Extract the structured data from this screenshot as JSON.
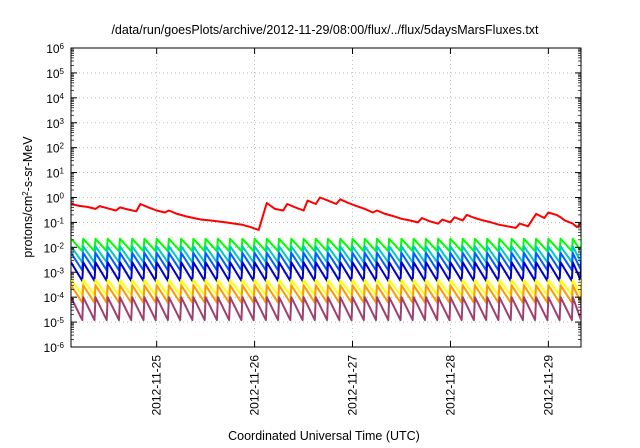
{
  "chart_data": {
    "type": "line",
    "title": "/data/run/goesPlots/archive/2012-11-29/08:00/flux/../flux/5daysMarsFluxes.txt",
    "xlabel": "Coordinated Universal Time (UTC)",
    "ylabel": {
      "base": "protons/cm",
      "exp": "2",
      "rest": "-s-sr-MeV"
    },
    "yscale": "log",
    "ylim_exponents": [
      -6,
      6
    ],
    "y_ticks": [
      {
        "base": "10",
        "exp": "-6"
      },
      {
        "base": "10",
        "exp": "-5"
      },
      {
        "base": "10",
        "exp": "-4"
      },
      {
        "base": "10",
        "exp": "-3"
      },
      {
        "base": "10",
        "exp": "-2"
      },
      {
        "base": "10",
        "exp": "-1"
      },
      {
        "base": "10",
        "exp": "0"
      },
      {
        "base": "10",
        "exp": "1"
      },
      {
        "base": "10",
        "exp": "2"
      },
      {
        "base": "10",
        "exp": "3"
      },
      {
        "base": "10",
        "exp": "4"
      },
      {
        "base": "10",
        "exp": "5"
      },
      {
        "base": "10",
        "exp": "6"
      }
    ],
    "xlim_days": [
      "2012-11-24 03:00",
      "2012-11-29 08:00"
    ],
    "x_ticks": [
      "2012-11-25",
      "2012-11-26",
      "2012-11-27",
      "2012-11-28",
      "2012-11-29"
    ],
    "grid": true,
    "series": [
      {
        "color": "#ff0000",
        "values": [
          [
            "2012-11-24 03:00",
            0.55
          ],
          [
            "2012-11-24 05:00",
            0.46
          ],
          [
            "2012-11-24 07:00",
            0.42
          ],
          [
            "2012-11-24 09:00",
            0.35
          ],
          [
            "2012-11-24 10:00",
            0.45
          ],
          [
            "2012-11-24 12:00",
            0.37
          ],
          [
            "2012-11-24 14:00",
            0.3
          ],
          [
            "2012-11-24 15:00",
            0.4
          ],
          [
            "2012-11-24 17:00",
            0.33
          ],
          [
            "2012-11-24 19:00",
            0.28
          ],
          [
            "2012-11-24 20:00",
            0.55
          ],
          [
            "2012-11-24 22:00",
            0.4
          ],
          [
            "2012-11-25 00:00",
            0.3
          ],
          [
            "2012-11-25 02:00",
            0.25
          ],
          [
            "2012-11-25 03:00",
            0.3
          ],
          [
            "2012-11-25 05:00",
            0.22
          ],
          [
            "2012-11-25 07:00",
            0.18
          ],
          [
            "2012-11-25 09:00",
            0.15
          ],
          [
            "2012-11-25 11:00",
            0.13
          ],
          [
            "2012-11-25 13:00",
            0.12
          ],
          [
            "2012-11-25 15:00",
            0.11
          ],
          [
            "2012-11-25 17:00",
            0.1
          ],
          [
            "2012-11-25 19:00",
            0.09
          ],
          [
            "2012-11-25 21:00",
            0.08
          ],
          [
            "2012-11-25 23:00",
            0.065
          ],
          [
            "2012-11-26 01:00",
            0.05
          ],
          [
            "2012-11-26 03:00",
            0.6
          ],
          [
            "2012-11-26 05:00",
            0.35
          ],
          [
            "2012-11-26 07:00",
            0.3
          ],
          [
            "2012-11-26 08:00",
            0.55
          ],
          [
            "2012-11-26 10:00",
            0.4
          ],
          [
            "2012-11-26 12:00",
            0.3
          ],
          [
            "2012-11-26 13:00",
            0.75
          ],
          [
            "2012-11-26 15:00",
            0.55
          ],
          [
            "2012-11-26 16:00",
            1.0
          ],
          [
            "2012-11-26 18:00",
            0.75
          ],
          [
            "2012-11-26 20:00",
            0.55
          ],
          [
            "2012-11-26 21:00",
            0.85
          ],
          [
            "2012-11-26 23:00",
            0.6
          ],
          [
            "2012-11-27 01:00",
            0.45
          ],
          [
            "2012-11-27 03:00",
            0.35
          ],
          [
            "2012-11-27 05:00",
            0.25
          ],
          [
            "2012-11-27 06:00",
            0.3
          ],
          [
            "2012-11-27 08:00",
            0.22
          ],
          [
            "2012-11-27 10:00",
            0.18
          ],
          [
            "2012-11-27 12:00",
            0.14
          ],
          [
            "2012-11-27 14:00",
            0.12
          ],
          [
            "2012-11-27 16:00",
            0.1
          ],
          [
            "2012-11-27 17:00",
            0.15
          ],
          [
            "2012-11-27 19:00",
            0.11
          ],
          [
            "2012-11-27 21:00",
            0.09
          ],
          [
            "2012-11-27 22:00",
            0.13
          ],
          [
            "2012-11-28 00:00",
            0.1
          ],
          [
            "2012-11-28 01:00",
            0.16
          ],
          [
            "2012-11-28 03:00",
            0.12
          ],
          [
            "2012-11-28 04:00",
            0.2
          ],
          [
            "2012-11-28 06:00",
            0.15
          ],
          [
            "2012-11-28 08:00",
            0.12
          ],
          [
            "2012-11-28 10:00",
            0.1
          ],
          [
            "2012-11-28 12:00",
            0.08
          ],
          [
            "2012-11-28 14:00",
            0.07
          ],
          [
            "2012-11-28 16:00",
            0.06
          ],
          [
            "2012-11-28 17:00",
            0.09
          ],
          [
            "2012-11-28 19:00",
            0.07
          ],
          [
            "2012-11-28 21:00",
            0.22
          ],
          [
            "2012-11-28 23:00",
            0.15
          ],
          [
            "2012-11-29 00:00",
            0.25
          ],
          [
            "2012-11-29 02:00",
            0.2
          ],
          [
            "2012-11-29 03:00",
            0.16
          ],
          [
            "2012-11-29 04:00",
            0.12
          ],
          [
            "2012-11-29 06:00",
            0.09
          ],
          [
            "2012-11-29 07:00",
            0.065
          ],
          [
            "2012-11-29 08:00",
            0.09
          ]
        ]
      },
      {
        "color": "#00ff00",
        "pattern": "sawtooth",
        "high": 0.022,
        "low": 0.007,
        "period_hours": 3.0
      },
      {
        "color": "#00c8c8",
        "pattern": "sawtooth",
        "high": 0.011,
        "low": 0.0025,
        "period_hours": 3.0
      },
      {
        "color": "#0060ff",
        "pattern": "sawtooth",
        "high": 0.006,
        "low": 0.0012,
        "period_hours": 3.0
      },
      {
        "color": "#0000cc",
        "pattern": "sawtooth",
        "high": 0.0025,
        "low": 0.00045,
        "period_hours": 3.0
      },
      {
        "color": "#ffff00",
        "pattern": "sawtooth",
        "high": 0.0005,
        "low": 0.00012,
        "period_hours": 3.0
      },
      {
        "color": "#ff9900",
        "pattern": "sawtooth",
        "high": 0.0003,
        "low": 6e-05,
        "period_hours": 3.0
      },
      {
        "color": "#a04070",
        "pattern": "sawtooth",
        "high": 0.0001,
        "low": 1.2e-05,
        "period_hours": 3.0
      }
    ]
  }
}
